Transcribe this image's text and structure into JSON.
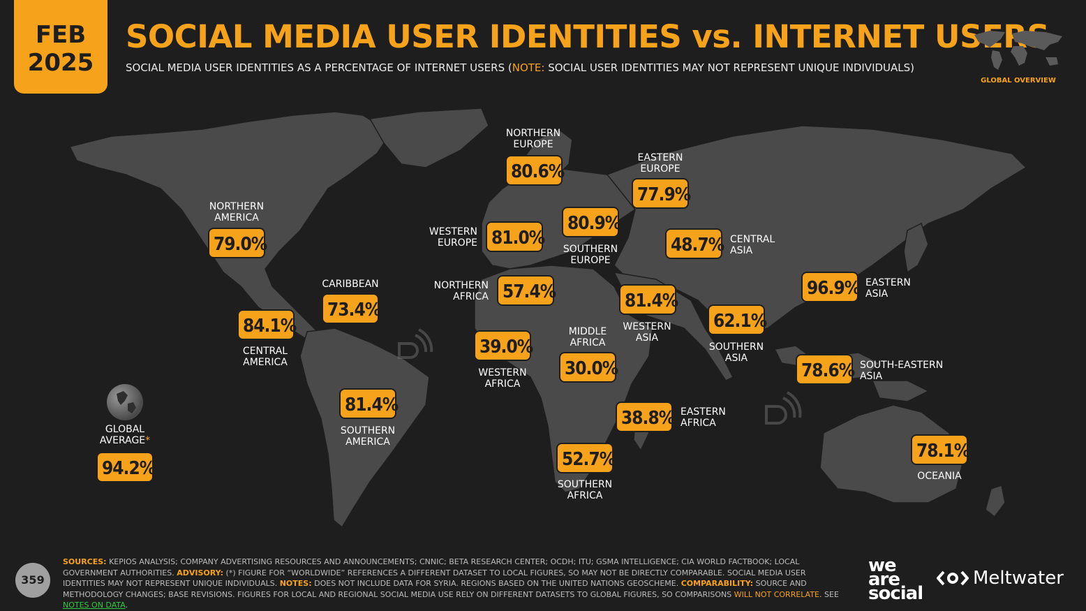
{
  "header": {
    "date_month": "FEB",
    "date_year": "2025",
    "title": "SOCIAL MEDIA USER IDENTITIES vs. INTERNET USERS",
    "subtitle_main": "SOCIAL MEDIA USER IDENTITIES AS A PERCENTAGE OF INTERNET USERS (",
    "subtitle_note_label": "NOTE:",
    "subtitle_note_text": " SOCIAL USER IDENTITIES MAY NOT REPRESENT UNIQUE INDIVIDUALS)",
    "section_label": "GLOBAL OVERVIEW"
  },
  "regions": {
    "northern_america": {
      "label1": "NORTHERN",
      "label2": "AMERICA",
      "value": "79.0%"
    },
    "central_america": {
      "label1": "CENTRAL",
      "label2": "AMERICA",
      "value": "84.1%"
    },
    "caribbean": {
      "label1": "CARIBBEAN",
      "value": "73.4%"
    },
    "southern_america": {
      "label1": "SOUTHERN",
      "label2": "AMERICA",
      "value": "81.4%"
    },
    "northern_europe": {
      "label1": "NORTHERN",
      "label2": "EUROPE",
      "value": "80.6%"
    },
    "western_europe": {
      "label1": "WESTERN",
      "label2": "EUROPE",
      "value": "81.0%"
    },
    "southern_europe": {
      "label1": "SOUTHERN",
      "label2": "EUROPE",
      "value": "80.9%"
    },
    "eastern_europe": {
      "label1": "EASTERN",
      "label2": "EUROPE",
      "value": "77.9%"
    },
    "northern_africa": {
      "label1": "NORTHERN",
      "label2": "AFRICA",
      "value": "57.4%"
    },
    "western_africa": {
      "label1": "WESTERN",
      "label2": "AFRICA",
      "value": "39.0%"
    },
    "middle_africa": {
      "label1": "MIDDLE",
      "label2": "AFRICA",
      "value": "30.0%"
    },
    "eastern_africa": {
      "label1": "EASTERN",
      "label2": "AFRICA",
      "value": "38.8%"
    },
    "southern_africa": {
      "label1": "SOUTHERN",
      "label2": "AFRICA",
      "value": "52.7%"
    },
    "western_asia": {
      "label1": "WESTERN",
      "label2": "ASIA",
      "value": "81.4%"
    },
    "central_asia": {
      "label1": "CENTRAL",
      "label2": "ASIA",
      "value": "48.7%"
    },
    "southern_asia": {
      "label1": "SOUTHERN",
      "label2": "ASIA",
      "value": "62.1%"
    },
    "eastern_asia": {
      "label1": "EASTERN",
      "label2": "ASIA",
      "value": "96.9%"
    },
    "south_eastern_asia": {
      "label1": "SOUTH-EASTERN",
      "label2": "ASIA",
      "value": "78.6%"
    },
    "oceania": {
      "label1": "OCEANIA",
      "value": "78.1%"
    },
    "global_average": {
      "label1": "GLOBAL",
      "label2": "AVERAGE",
      "marker": "*",
      "value": "94.2%"
    }
  },
  "footer": {
    "page_number": "359",
    "sources_label": "SOURCES:",
    "sources_text": " KEPIOS ANALYSIS; COMPANY ADVERTISING RESOURCES AND ANNOUNCEMENTS; CNNIC; BETA RESEARCH CENTER; OCDH; ITU; GSMA INTELLIGENCE; CIA WORLD FACTBOOK; LOCAL GOVERNMENT AUTHORITIES. ",
    "advisory_label": "ADVISORY:",
    "advisory_text": " (*) FIGURE FOR “WORLDWIDE” REFERENCES A DIFFERENT DATASET TO LOCAL FIGURES, SO MAY NOT BE DIRECTLY COMPARABLE. SOCIAL MEDIA USER IDENTITIES MAY NOT REPRESENT UNIQUE INDIVIDUALS. ",
    "notes_label": "NOTES:",
    "notes_text": " DOES NOT INCLUDE DATA FOR SYRIA. REGIONS BASED ON THE UNITED NATIONS GEOSCHEME. ",
    "comparability_label": "COMPARABILITY:",
    "comparability_text": " SOURCE AND METHODOLOGY CHANGES; BASE REVISIONS. FIGURES FOR LOCAL AND REGIONAL SOCIAL MEDIA USE RELY ON DIFFERENT DATASETS TO GLOBAL FIGURES, SO COMPARISONS ",
    "will_not_correlate": "WILL NOT CORRELATE",
    "see_text": ". SEE ",
    "notes_link": "NOTES ON DATA",
    "end_text": ".",
    "brand1_line1": "we",
    "brand1_line2": "are",
    "brand1_line3": "social",
    "brand2": "Meltwater"
  },
  "colors": {
    "accent": "#f7a21b",
    "background": "#1e1e1e",
    "land": "#4a4a4a",
    "link": "#2ecc40"
  }
}
